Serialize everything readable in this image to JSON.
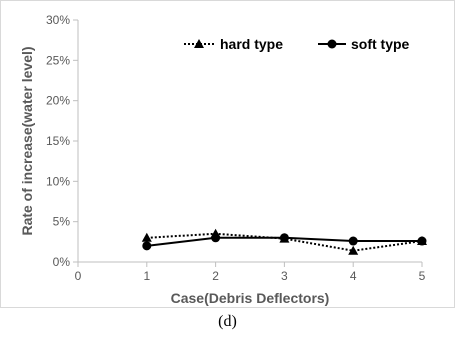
{
  "caption": "(d)",
  "chart_data": {
    "type": "line",
    "xlabel": "Case(Debris Deflectors)",
    "ylabel": "Rate of increase(water level)",
    "xlim": [
      0,
      5
    ],
    "ylim": [
      0,
      30
    ],
    "x_ticks": [
      "0",
      "1",
      "2",
      "3",
      "4",
      "5"
    ],
    "y_ticks": [
      "0%",
      "5%",
      "10%",
      "15%",
      "20%",
      "25%",
      "30%"
    ],
    "x": [
      1,
      2,
      3,
      4,
      5
    ],
    "series": [
      {
        "name": "hard type",
        "values": [
          3.0,
          3.5,
          2.9,
          1.4,
          2.6
        ],
        "line": "dotted",
        "marker": "triangle",
        "color": "#000000"
      },
      {
        "name": "soft type",
        "values": [
          2.0,
          3.0,
          3.0,
          2.6,
          2.6
        ],
        "line": "solid",
        "marker": "circle",
        "color": "#000000"
      }
    ],
    "legend": "top-right",
    "grid": false,
    "axis_color": "#bfbfbf",
    "text_color": "#595959"
  }
}
